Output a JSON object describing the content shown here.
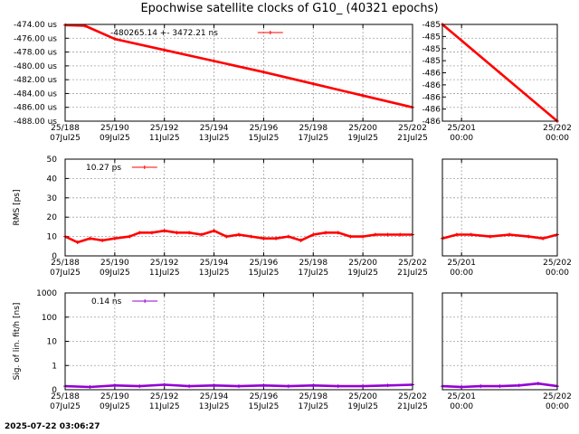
{
  "title": "Epochwise satellite clocks of G10_ (40321 epochs)",
  "footer_timestamp": "2025-07-22 03:06:27",
  "colors": {
    "series1": "#ff0000",
    "series3": "#9400d3",
    "grid": "#a0a0a0"
  },
  "chart_data": [
    {
      "id": "clock",
      "type": "line",
      "ylabel": "",
      "legend": {
        "text": "-480265.14 +-     3472.21 ns",
        "position": "top-center"
      },
      "grid": true,
      "left": {
        "xlim": [
          188,
          202
        ],
        "ylim": [
          -488,
          -474
        ],
        "yticks": [
          -474,
          -476,
          -478,
          -480,
          -482,
          -484,
          -486,
          -488
        ],
        "ytick_labels": [
          "-474.00 us",
          "-476.00 us",
          "-478.00 us",
          "-480.00 us",
          "-482.00 us",
          "-484.00 us",
          "-486.00 us",
          "-488.00 us"
        ],
        "x": [
          188,
          188.8,
          190,
          192,
          194,
          196,
          198,
          200,
          202
        ],
        "y": [
          -474.1,
          -474.2,
          -476.1,
          -477.7,
          -479.3,
          -480.9,
          -482.6,
          -484.3,
          -486.0
        ]
      },
      "right": {
        "xlim": [
          200.8,
          202
        ],
        "ylim": [
          -486,
          -485
        ],
        "ytick_labels": [
          "-485",
          "-485",
          "-485",
          "-485",
          "-486",
          "-486",
          "-486",
          "-486",
          "-486"
        ],
        "x": [
          200.8,
          201.4,
          202
        ],
        "y": [
          -485.0,
          -485.5,
          -486.0
        ]
      }
    },
    {
      "id": "rms",
      "type": "line",
      "ylabel": "RMS [ps]",
      "legend": {
        "text": "10.27 ps",
        "position": "top-left"
      },
      "grid": true,
      "left": {
        "xlim": [
          188,
          202
        ],
        "ylim": [
          0,
          50
        ],
        "yticks": [
          0,
          10,
          20,
          30,
          40,
          50
        ],
        "ytick_labels": [
          "0",
          "10",
          "20",
          "30",
          "40",
          "50"
        ],
        "x": [
          188,
          188.5,
          189,
          189.5,
          190,
          190.6,
          191,
          191.5,
          192,
          192.5,
          193,
          193.5,
          194,
          194.5,
          195,
          195.5,
          196,
          196.5,
          197,
          197.5,
          198,
          198.5,
          199,
          199.5,
          200,
          200.5,
          201,
          201.5,
          202
        ],
        "y": [
          10,
          7,
          9,
          8,
          9,
          10,
          12,
          12,
          13,
          12,
          12,
          11,
          13,
          10,
          11,
          10,
          9,
          9,
          10,
          8,
          11,
          12,
          12,
          10,
          10,
          11,
          11,
          11,
          11
        ]
      },
      "right": {
        "xlim": [
          200.8,
          202
        ],
        "ylim": [
          0,
          50
        ],
        "x": [
          200.8,
          200.95,
          201.1,
          201.3,
          201.5,
          201.7,
          201.85,
          202
        ],
        "y": [
          9,
          11,
          11,
          10,
          11,
          10,
          9,
          11
        ]
      }
    },
    {
      "id": "sig",
      "type": "line",
      "ylabel": "Sig. of lin. fit/h [ns]",
      "legend": {
        "text": "0.14 ns",
        "position": "top-left"
      },
      "grid": true,
      "log_y": true,
      "left": {
        "xlim": [
          188,
          202
        ],
        "ylim": [
          0.1,
          1000
        ],
        "yticks": [
          0.1,
          1,
          10,
          100,
          1000
        ],
        "ytick_labels": [
          "0",
          "1",
          "10",
          "100",
          "1000"
        ],
        "x": [
          188,
          189,
          190,
          191,
          192,
          193,
          194,
          195,
          196,
          197,
          198,
          199,
          200,
          201,
          202
        ],
        "y": [
          0.14,
          0.13,
          0.15,
          0.14,
          0.16,
          0.14,
          0.15,
          0.14,
          0.15,
          0.14,
          0.15,
          0.14,
          0.14,
          0.15,
          0.16
        ]
      },
      "right": {
        "xlim": [
          200.8,
          202
        ],
        "ylim": [
          0.1,
          1000
        ],
        "x": [
          200.8,
          201.0,
          201.2,
          201.4,
          201.6,
          201.8,
          202
        ],
        "y": [
          0.14,
          0.13,
          0.14,
          0.14,
          0.15,
          0.18,
          0.14
        ]
      }
    }
  ],
  "x_axis_left": {
    "ticks": [
      188,
      190,
      192,
      194,
      196,
      198,
      200,
      202
    ],
    "top_labels": [
      "25/188",
      "25/190",
      "25/192",
      "25/194",
      "25/196",
      "25/198",
      "25/200",
      "25/202"
    ],
    "bottom_labels": [
      "07Jul25",
      "09Jul25",
      "11Jul25",
      "13Jul25",
      "15Jul25",
      "17Jul25",
      "19Jul25",
      "21Jul25"
    ]
  },
  "x_axis_right": {
    "ticks": [
      201,
      202
    ],
    "top_labels": [
      "25/201",
      "25/202"
    ],
    "bottom_labels": [
      "00:00",
      "00:00"
    ]
  }
}
